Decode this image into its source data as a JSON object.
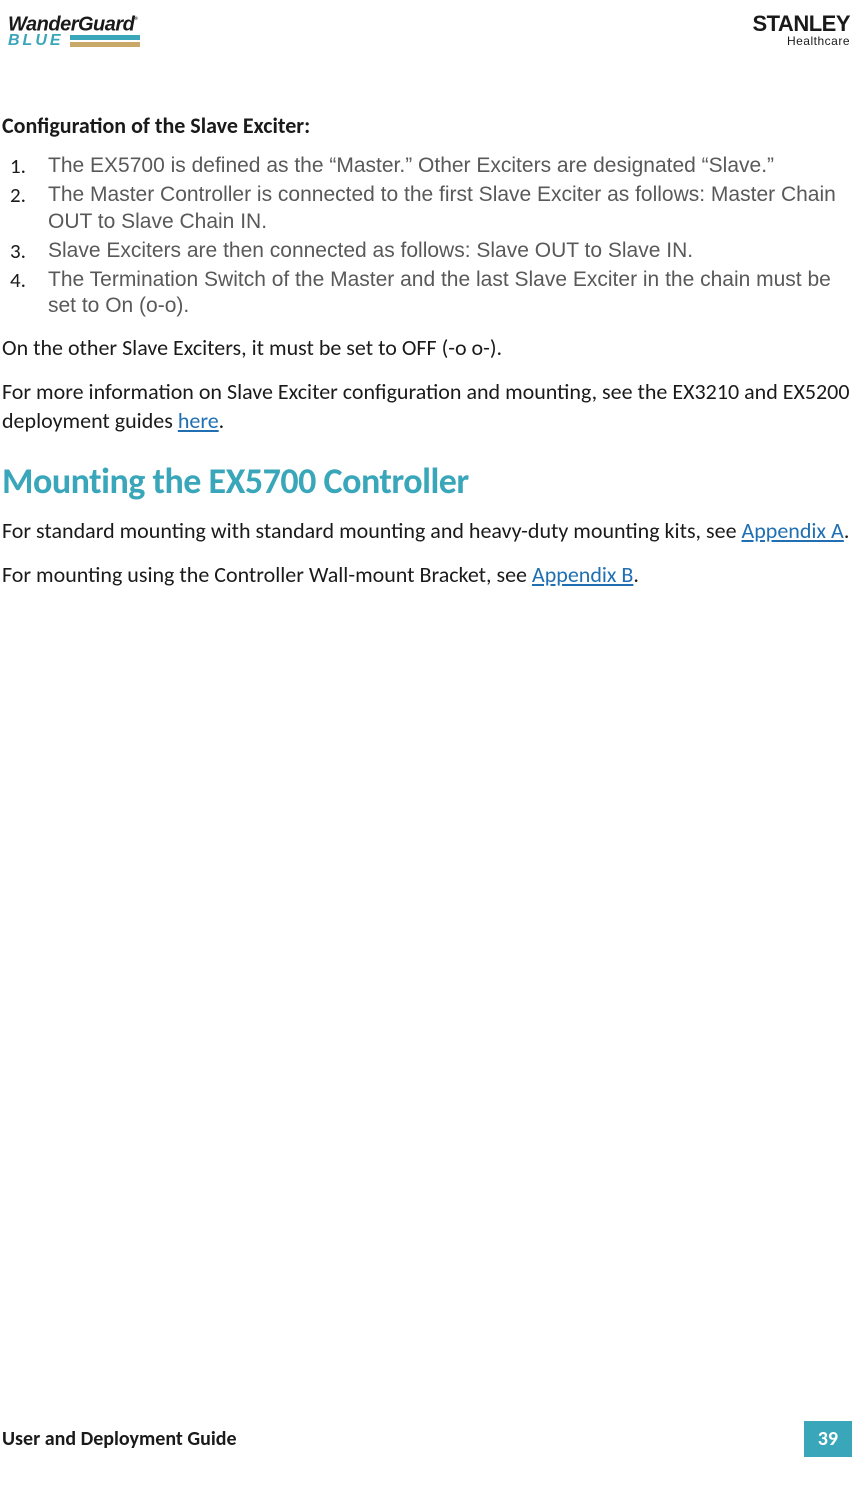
{
  "header": {
    "logo_left_line1": "WanderGuard",
    "logo_left_reg": "®",
    "logo_left_line2": "BLUE",
    "logo_right_line1": "STANLEY",
    "logo_right_line2": "Healthcare"
  },
  "colors": {
    "teal": "#3aa6b9",
    "gold": "#c9a96a",
    "body_gray": "#595959",
    "link": "#1f6fb2",
    "text": "#1a1a1a",
    "bg": "#ffffff"
  },
  "section": {
    "title": "Configuration of the Slave Exciter:",
    "items": [
      "The EX5700 is defined as the “Master.” Other Exciters are designated “Slave.”",
      "The Master Controller is connected to the first Slave Exciter as follows: Master Chain OUT to Slave Chain IN.",
      "Slave Exciters are then connected as follows: Slave OUT to Slave IN.",
      "The Termination Switch of the Master and the last Slave Exciter in the chain must be set to On (o-o)."
    ]
  },
  "paragraphs": {
    "p1": "On the other Slave Exciters, it must be set to OFF (-o o-).",
    "p2_pre": "For more information on Slave Exciter configuration and mounting, see the EX3210 and EX5200 deployment guides ",
    "p2_link": "here",
    "p2_post": "."
  },
  "mounting": {
    "heading": "Mounting the EX5700 Controller",
    "p1_pre": "For standard mounting with standard mounting and heavy-duty mounting kits, see ",
    "p1_link": "Appendix A",
    "p1_post": ".",
    "p2_pre": "For mounting using the Controller Wall-mount Bracket, see ",
    "p2_link": "Appendix B",
    "p2_post": "."
  },
  "footer": {
    "text": "User and Deployment Guide",
    "page": "39"
  }
}
